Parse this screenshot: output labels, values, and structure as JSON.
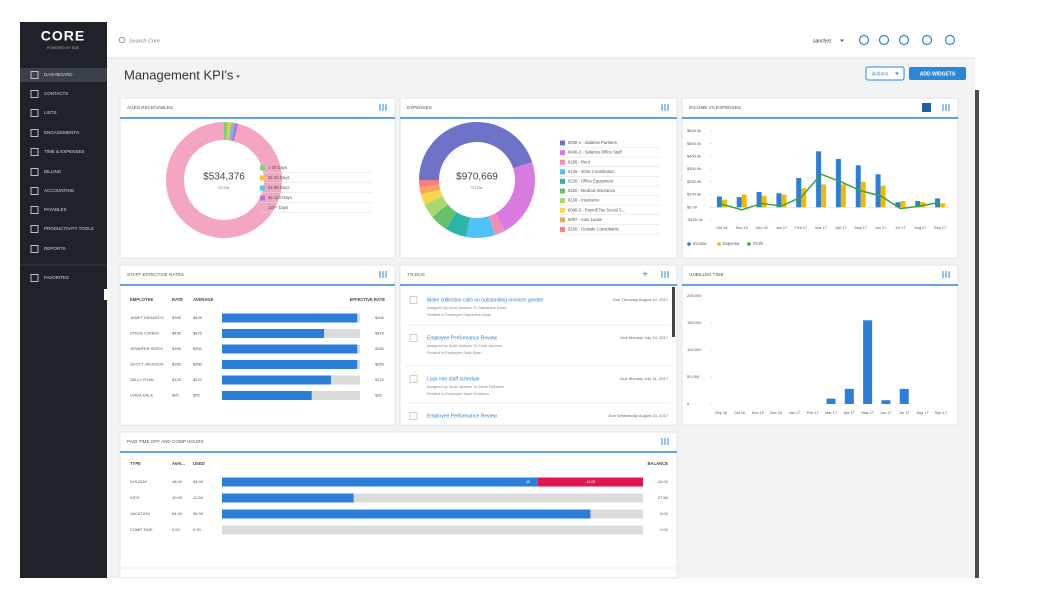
{
  "header": {
    "logo": "CORE",
    "logo_sub": "POWERED BY BQE",
    "search": "Search Core",
    "user": "sanchez"
  },
  "sidebar": {
    "items": [
      "DASHBOARD",
      "CONTACTS",
      "LISTS",
      "ENGAGEMENTS",
      "TIME & EXPENSES",
      "BILLING",
      "ACCOUNTING",
      "PAYABLES",
      "PRODUCTIVITY TOOLS",
      "REPORTS",
      "FAVORITES"
    ]
  },
  "page": {
    "title": "Management KPI's",
    "actions": "Actions",
    "add_widgets": "ADD WIDGETS"
  },
  "chart_data": [
    {
      "type": "pie",
      "title": "AGED RECEIVABLES",
      "center_label": "$534,376",
      "center_sub": "TOTAL",
      "categories": [
        "1-30 Days",
        "31-60 Days",
        "61-90 Days",
        "91-120 Days",
        "120+ Days"
      ],
      "values": [
        1,
        1,
        1,
        1,
        96
      ],
      "colors": [
        "#7ccf7f",
        "#f5c33b",
        "#5fc4e8",
        "#c36fd6",
        "#f3a5c3"
      ]
    },
    {
      "type": "pie",
      "title": "EXPENSES",
      "center_label": "$970,669",
      "center_sub": "TOTAL",
      "categories": [
        "6040-1 - Salaries Partners",
        "6040-2 - Salaries Office Staff",
        "6295 - Rent",
        "6146 - 401K Contribution",
        "6230 - Office Equipment",
        "6150 - Medical Insurance",
        "6130 - Insurance",
        "6040-3 - Payroll Tax Social S...",
        "6097 - Auto Lease",
        "5100 - Outside Consultants"
      ],
      "values": [
        45,
        22,
        3,
        8,
        6,
        5,
        4,
        3,
        2,
        2
      ],
      "colors": [
        "#6f73c8",
        "#d77be0",
        "#f08fb8",
        "#4fc3f7",
        "#2bb5a8",
        "#66c26a",
        "#a8d86e",
        "#f9d648",
        "#f9a45c",
        "#f57e7e"
      ]
    },
    {
      "type": "bar",
      "title": "INCOME VS EXPENSES",
      "categories": [
        "Oct 16",
        "Nov 16",
        "Dec 16",
        "Jan 17",
        "Feb 17",
        "Mar 17",
        "Apr 17",
        "May 17",
        "Jun 17",
        "Jul 17",
        "Aug 17",
        "Sep 17"
      ],
      "series": [
        {
          "name": "Income",
          "type": "bar",
          "color": "#2b7fd8",
          "values": [
            85000,
            80000,
            120000,
            110000,
            230000,
            440000,
            380000,
            330000,
            260000,
            40000,
            50000,
            70000
          ]
        },
        {
          "name": "Expense",
          "type": "bar",
          "color": "#f5b800",
          "values": [
            60000,
            100000,
            90000,
            100000,
            150000,
            180000,
            180000,
            200000,
            170000,
            50000,
            40000,
            30000
          ]
        },
        {
          "name": "Profit",
          "type": "line",
          "color": "#3aa335",
          "values": [
            25000,
            -20000,
            30000,
            10000,
            80000,
            260000,
            200000,
            130000,
            90000,
            -10000,
            10000,
            40000
          ]
        }
      ],
      "ylim": [
        -100000,
        600000
      ],
      "yticks": [
        {
          "value": 600000,
          "label": "$600.0k"
        },
        {
          "value": 500000,
          "label": "$500.0k"
        },
        {
          "value": 400000,
          "label": "$400.0k"
        },
        {
          "value": 300000,
          "label": "$300.0k"
        },
        {
          "value": 200000,
          "label": "$200.0k"
        },
        {
          "value": 100000,
          "label": "$100.0k"
        },
        {
          "value": 0,
          "label": "$0.00"
        },
        {
          "value": -100000,
          "label": "-$100.0k"
        }
      ]
    },
    {
      "type": "bar",
      "title": "UNBILLED TIME",
      "color": "#2b7fd8",
      "categories": [
        "Sep 16",
        "Oct 16",
        "Nov 16",
        "Dec 16",
        "Jan 17",
        "Feb 17",
        "Mar 17",
        "Apr 17",
        "May 17",
        "Jun 17",
        "Jul 17",
        "Aug 17",
        "Sep 17"
      ],
      "values": [
        0,
        0,
        0,
        0,
        0,
        0,
        10000,
        28000,
        155000,
        7000,
        28000,
        0,
        0
      ],
      "ylim": [
        0,
        200000
      ],
      "yticks": [
        {
          "value": 200000,
          "label": "200,000"
        },
        {
          "value": 150000,
          "label": "150,000"
        },
        {
          "value": 100000,
          "label": "100,000"
        },
        {
          "value": 50000,
          "label": "50,000"
        },
        0
      ]
    }
  ],
  "staff_rates": {
    "title": "STAFF EFFECTIVE RATES",
    "columns": [
      "EMPLOYEE",
      "RATE",
      "AVERAGE",
      "EFFECTIVE RATE"
    ],
    "rows": [
      {
        "employee": "JANET DENARCO",
        "rate": "$395",
        "average": "$406",
        "bar": 98,
        "effective": "$406"
      },
      {
        "employee": "STEVE COHEN",
        "rate": "$435",
        "average": "$425",
        "bar": 74,
        "effective": "$425"
      },
      {
        "employee": "JENNIFER SMITH",
        "rate": "$395",
        "average": "$390",
        "bar": 98,
        "effective": "$390"
      },
      {
        "employee": "SCOTT JACKSON",
        "rate": "$350",
        "average": "$350",
        "bar": 98,
        "effective": "$350"
      },
      {
        "employee": "SALLY RYAN",
        "rate": "$125",
        "average": "$122",
        "bar": 79,
        "effective": "$122"
      },
      {
        "employee": "LINDA DALE",
        "rate": "$95",
        "average": "$95",
        "bar": 65,
        "effective": "$95"
      }
    ]
  },
  "todos": {
    "title": "TO-DOS",
    "items": [
      {
        "title": "Make collection calls on outstanding invoices greater",
        "due": "Due Thursday August 10, 2017",
        "assigned": "Assigned by Scott Jackson To Samantha Davis",
        "related": "Related to Employee Samantha Davis"
      },
      {
        "title": "Employee Performance Review",
        "due": "Due Monday July 24, 2017",
        "assigned": "Assigned by Scott Jackson To Scott Jackson",
        "related": "Related to Employee Sally Ryan"
      },
      {
        "title": "Look into staff schedule",
        "due": "Due Monday July 31, 2017",
        "assigned": "Assigned by Scott Jackson To Janet DeMarco",
        "related": "Related to Employee Janet DeMarco"
      },
      {
        "title": "Employee Performance Review",
        "due": "Due Wednesday August 23, 2017"
      }
    ]
  },
  "pto": {
    "title": "PAID TIME OFF AND COMP HOURS",
    "columns": [
      "TYPE",
      "AVAI...",
      "USED",
      "BALANCE"
    ],
    "rows": [
      {
        "type": "HOLIDAY",
        "values": {
          "available": 48,
          "used": 64,
          "balance": -16
        },
        "value_labels": {
          "available": "48.00",
          "used": "64.00",
          "balance": "-16.00"
        },
        "bar_labels": [
          "48",
          "-16.00"
        ]
      },
      {
        "type": "SICK",
        "values": {
          "available": 40,
          "used": 12.5,
          "balance": 27.5
        },
        "value_labels": {
          "available": "40.00",
          "used": "12.50",
          "balance": "27.50"
        }
      },
      {
        "type": "VACATION",
        "values": {
          "available": 64,
          "used": 56,
          "balance": 8
        },
        "value_labels": {
          "available": "64.00",
          "used": "56.00",
          "balance": "8.00"
        }
      },
      {
        "type": "COMP TIME",
        "values": {
          "available": 0,
          "used": 0,
          "balance": 0
        },
        "value_labels": {
          "available": "0.00",
          "used": "0.00",
          "balance": "0.00"
        }
      }
    ]
  }
}
